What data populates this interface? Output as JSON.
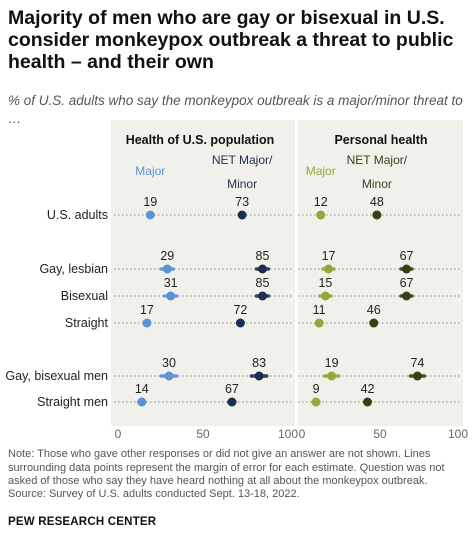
{
  "title": "Majority of men who are gay or bisexual in U.S. consider monkeypox outbreak a threat to public health – and their own",
  "subtitle": "% of U.S. adults who say the monkeypox outbreak is a major/minor threat to …",
  "note": "Note: Those who gave other responses or did not give an answer are not shown. Lines surrounding data points represent the margin of error for each estimate. Question was not asked of those who say they have heard nothing at all about the monkeypox outbreak.",
  "source": "Source: Survey of U.S. adults conducted Sept. 13-18, 2022.",
  "brand": "PEW RESEARCH CENTER",
  "colors": {
    "panel_bg": "#f1f1ec",
    "major_health": "#5b93d5",
    "net_health": "#1d2d4f",
    "major_personal": "#8faa3a",
    "net_personal": "#3b3d17"
  },
  "chart_data": [
    {
      "type": "scatter",
      "title": "Health of U.S. population",
      "categories": [
        "U.S. adults",
        "Gay, lesbian",
        "Bisexual",
        "Straight",
        "Gay, bisexual men",
        "Straight men"
      ],
      "series": [
        {
          "name": "Major",
          "values": [
            19,
            29,
            31,
            17,
            30,
            14
          ]
        },
        {
          "name": "NET Major/ Minor",
          "values": [
            73,
            85,
            85,
            72,
            83,
            67
          ]
        }
      ],
      "xlim": [
        0,
        100
      ],
      "ticks": [
        "0",
        "50",
        "100"
      ]
    },
    {
      "type": "scatter",
      "title": "Personal health",
      "categories": [
        "U.S. adults",
        "Gay, lesbian",
        "Bisexual",
        "Straight",
        "Gay, bisexual men",
        "Straight men"
      ],
      "series": [
        {
          "name": "Major",
          "values": [
            12,
            17,
            15,
            11,
            19,
            9
          ]
        },
        {
          "name": "NET Major/ Minor",
          "values": [
            48,
            67,
            67,
            46,
            74,
            42
          ]
        }
      ],
      "xlim": [
        0,
        100
      ],
      "ticks": [
        "0",
        "50",
        "100"
      ]
    }
  ]
}
